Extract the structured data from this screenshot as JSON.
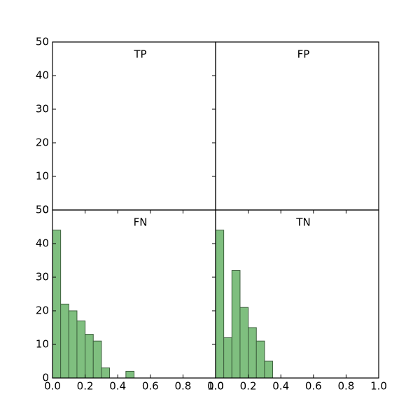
{
  "chart_data": [
    {
      "type": "histogram",
      "title": "TP",
      "xlim": [
        0,
        1
      ],
      "ylim": [
        0,
        50
      ],
      "yticks": [
        0,
        10,
        20,
        30,
        40,
        50
      ]
    },
    {
      "type": "histogram",
      "title": "FP",
      "xlim": [
        0,
        1
      ],
      "ylim": [
        0,
        50
      ]
    },
    {
      "type": "histogram",
      "title": "FN",
      "xlim": [
        0,
        1
      ],
      "ylim": [
        0,
        50
      ],
      "color": "#7fbf7f",
      "yticks": [
        0,
        10,
        20,
        30,
        40,
        50
      ],
      "xticks": [
        {
          "value": 0,
          "label": "0.0"
        },
        {
          "value": 0.2,
          "label": "0.2"
        },
        {
          "value": 0.4,
          "label": "0.4"
        },
        {
          "value": 0.6,
          "label": "0.6"
        },
        {
          "value": 0.8,
          "label": "0.8"
        },
        {
          "value": 1,
          "label": "1.0"
        }
      ],
      "bins": [
        0,
        0.05,
        0.1,
        0.15,
        0.2,
        0.25,
        0.3,
        0.35,
        0.4,
        0.45,
        0.5
      ],
      "values": [
        44,
        22,
        20,
        17,
        13,
        11,
        3,
        0,
        0,
        2
      ]
    },
    {
      "type": "histogram",
      "title": "TN",
      "xlim": [
        0,
        1
      ],
      "ylim": [
        0,
        50
      ],
      "color": "#7fbf7f",
      "xticks": [
        {
          "value": 0,
          "label": "0.0"
        },
        {
          "value": 0.2,
          "label": "0.2"
        },
        {
          "value": 0.4,
          "label": "0.4"
        },
        {
          "value": 0.6,
          "label": "0.6"
        },
        {
          "value": 0.8,
          "label": "0.8"
        },
        {
          "value": 1,
          "label": "1.0"
        }
      ],
      "bins": [
        0,
        0.05,
        0.1,
        0.15,
        0.2,
        0.25,
        0.3,
        0.35
      ],
      "values": [
        44,
        12,
        32,
        21,
        15,
        11,
        5
      ]
    }
  ]
}
